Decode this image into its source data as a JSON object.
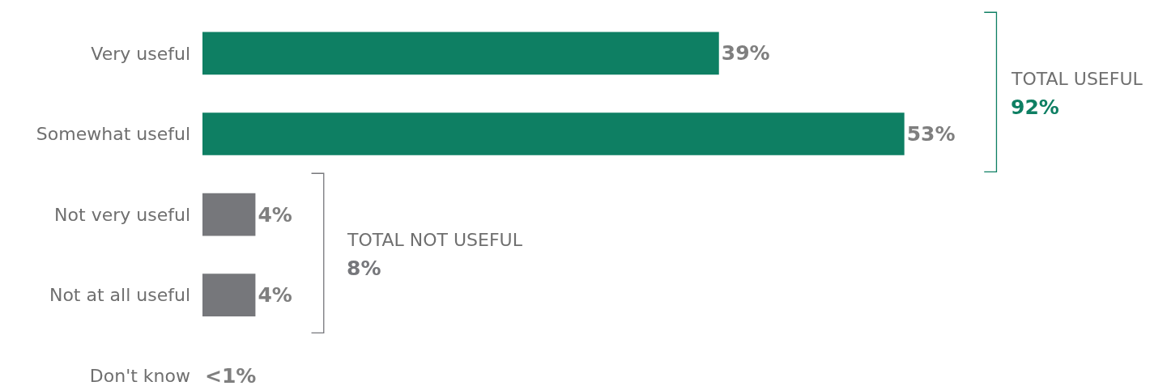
{
  "chart_data": {
    "type": "bar",
    "orientation": "horizontal",
    "categories": [
      "Very useful",
      "Somewhat useful",
      "Not very useful",
      "Not at all useful",
      "Don't know"
    ],
    "values": [
      39,
      53,
      4,
      4,
      0
    ],
    "colors": [
      "#0e7f63",
      "#0e7f63",
      "#76777b",
      "#76777b",
      "#76777b"
    ],
    "value_labels": [
      "39%",
      "53%",
      "4%",
      "4%",
      "<1%"
    ],
    "annotations": [
      "TOTAL USEFUL",
      "92%",
      "TOTAL NOT USEFUL",
      "8%"
    ]
  }
}
